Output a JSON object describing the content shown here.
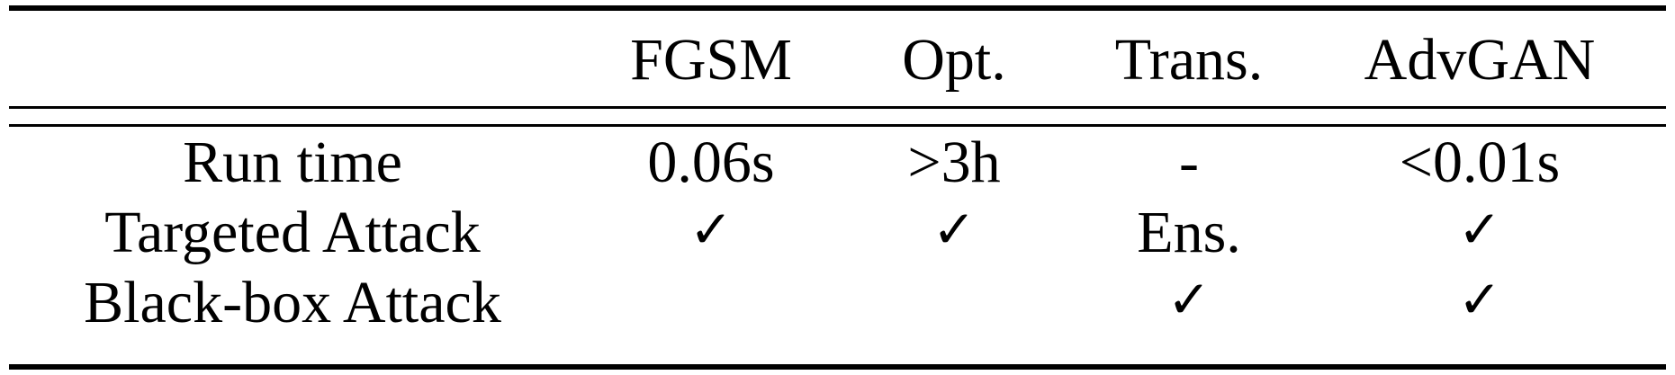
{
  "table": {
    "columns": [
      "",
      "FGSM",
      "Opt.",
      "Trans.",
      "AdvGAN"
    ],
    "rows": [
      {
        "label": "Run time",
        "cells": [
          "0.06s",
          ">3h",
          "-",
          "<0.01s"
        ]
      },
      {
        "label": "Targeted Attack",
        "cells": [
          "✓",
          "✓",
          "Ens.",
          "✓"
        ]
      },
      {
        "label": "Black-box Attack",
        "cells": [
          "",
          "",
          "✓",
          "✓"
        ]
      }
    ]
  }
}
